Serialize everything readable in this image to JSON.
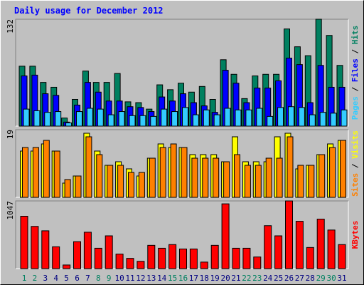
{
  "title": "Daily usage for December 2012",
  "chart_data": [
    {
      "type": "bar",
      "ylim": [
        0,
        132
      ],
      "yticks": [
        132
      ],
      "legend_separator": " / ",
      "series": [
        {
          "name": "Hits",
          "color": "#008060",
          "values": [
            74,
            74,
            54,
            48,
            10,
            33,
            68,
            54,
            54,
            65,
            30,
            29,
            21,
            51,
            45,
            53,
            42,
            49,
            33,
            82,
            64,
            34,
            62,
            64,
            64,
            120,
            98,
            87,
            132,
            112,
            75
          ]
        },
        {
          "name": "Files",
          "color": "#0000ff",
          "values": [
            62,
            63,
            40,
            38,
            5,
            26,
            54,
            42,
            31,
            31,
            24,
            23,
            18,
            36,
            31,
            40,
            29,
            25,
            17,
            69,
            53,
            29,
            47,
            47,
            56,
            84,
            76,
            29,
            75,
            48,
            48
          ]
        },
        {
          "name": "Pages",
          "color": "#33ccff",
          "values": [
            21,
            19,
            17,
            18,
            4,
            18,
            22,
            21,
            14,
            18,
            13,
            13,
            12,
            21,
            18,
            23,
            14,
            20,
            14,
            22,
            20,
            20,
            22,
            12,
            23,
            24,
            23,
            14,
            17,
            16,
            20
          ]
        }
      ]
    },
    {
      "type": "bar",
      "ylim": [
        0,
        19
      ],
      "yticks": [
        19
      ],
      "legend_separator": " / ",
      "series": [
        {
          "name": "Visits",
          "color": "#ffff00",
          "values": [
            13,
            13,
            15,
            13,
            4,
            6,
            18,
            13,
            9,
            10,
            8,
            6,
            11,
            15,
            14,
            14,
            12,
            12,
            12,
            10,
            17,
            10,
            10,
            10,
            17,
            18,
            8,
            9,
            12,
            15,
            16
          ]
        },
        {
          "name": "Sites",
          "color": "#ff8000",
          "values": [
            14,
            14,
            16,
            13,
            5,
            6,
            17,
            12,
            9,
            9,
            7,
            7,
            11,
            14,
            15,
            14,
            11,
            11,
            11,
            10,
            12,
            9,
            9,
            11,
            11,
            17,
            9,
            9,
            12,
            14,
            16
          ]
        }
      ]
    },
    {
      "type": "bar",
      "ylim": [
        0,
        1047
      ],
      "yticks": [
        1047
      ],
      "categories": [
        "1",
        "2",
        "3",
        "4",
        "5",
        "6",
        "7",
        "8",
        "9",
        "10",
        "11",
        "12",
        "13",
        "14",
        "15",
        "16",
        "17",
        "18",
        "19",
        "20",
        "21",
        "22",
        "23",
        "24",
        "25",
        "26",
        "27",
        "28",
        "29",
        "30",
        "31"
      ],
      "category_colors": [
        "#008060",
        "#008060",
        "#000080",
        "#000080",
        "#000080",
        "#000080",
        "#000080",
        "#008060",
        "#008060",
        "#000080",
        "#000080",
        "#000080",
        "#000080",
        "#000080",
        "#008060",
        "#008060",
        "#000080",
        "#000080",
        "#000080",
        "#000080",
        "#000080",
        "#008060",
        "#008060",
        "#000080",
        "#000080",
        "#000080",
        "#000080",
        "#000080",
        "#008060",
        "#008060",
        "#000080"
      ],
      "series": [
        {
          "name": "KBytes",
          "color": "#ff0000",
          "values": [
            810,
            653,
            585,
            338,
            56,
            417,
            563,
            315,
            507,
            225,
            158,
            113,
            360,
            315,
            372,
            304,
            304,
            101,
            360,
            1002,
            315,
            315,
            180,
            664,
            507,
            1047,
            732,
            327,
            766,
            597,
            372
          ]
        }
      ]
    }
  ]
}
